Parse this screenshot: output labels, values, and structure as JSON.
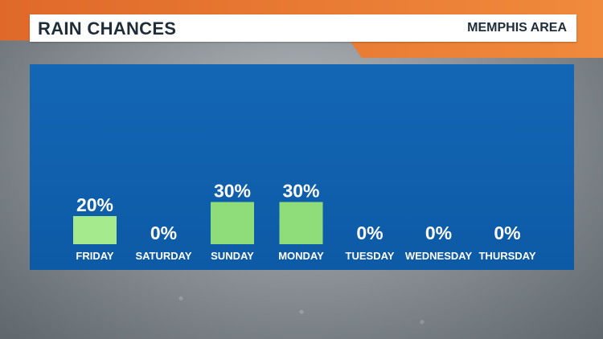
{
  "header": {
    "title": "RAIN CHANCES",
    "location": "MEMPHIS AREA"
  },
  "colors": {
    "accent_orange": "#e0692a",
    "panel_blue": "#0f62b0",
    "bar_light_green": "#a5ea8d",
    "bar_green": "#8edd7a"
  },
  "chart_data": {
    "type": "bar",
    "categories": [
      "FRIDAY",
      "SATURDAY",
      "SUNDAY",
      "MONDAY",
      "TUESDAY",
      "WEDNESDAY",
      "THURSDAY"
    ],
    "values": [
      20,
      0,
      30,
      30,
      0,
      0,
      0
    ],
    "data_labels": [
      "20%",
      "0%",
      "30%",
      "30%",
      "0%",
      "0%",
      "0%"
    ],
    "unit": "%",
    "ylim": [
      0,
      100
    ],
    "grid": false
  }
}
